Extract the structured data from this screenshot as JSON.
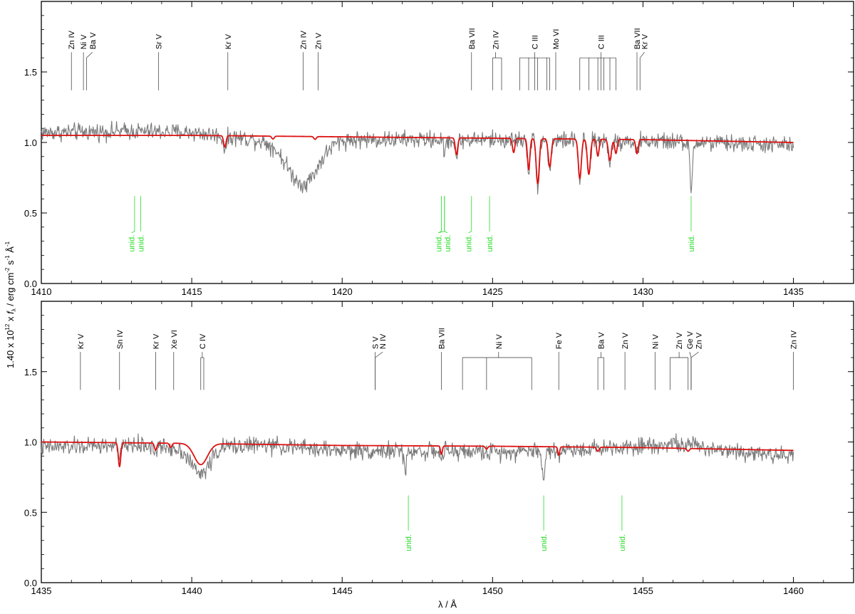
{
  "ylabel_parts": {
    "prefix": "1.40 x 10",
    "exp1": "12",
    "mid": " x ",
    "f": "f",
    "lambda_sub": "λ",
    "unit": " / erg cm",
    "exp2": "-2",
    "s": " s",
    "exp3": "-1",
    "A": " Å",
    "exp4": "-1"
  },
  "xlabel": "λ / Å",
  "colors": {
    "observation": "#7a7a7a",
    "model": "#dd1111",
    "unid": "#22dd22",
    "ion": "#333333",
    "axis": "#000000"
  },
  "chart_data": [
    {
      "type": "line",
      "title": "",
      "xlim": [
        1410,
        1437
      ],
      "ylim": [
        0,
        2
      ],
      "xticks": [
        1410,
        1415,
        1420,
        1425,
        1430,
        1435
      ],
      "yticks": [
        0.0,
        0.5,
        1.0,
        1.5
      ],
      "ytick_labels": [
        "0.0",
        "0.5",
        "1.0",
        "1.5"
      ],
      "series": [
        {
          "role": "observation",
          "x_range": [
            1410,
            1435
          ],
          "continuum": [
            [
              1410,
              1.07
            ],
            [
              1413,
              1.08
            ],
            [
              1415,
              1.07
            ],
            [
              1418,
              1.0
            ],
            [
              1420,
              1.02
            ],
            [
              1425,
              1.02
            ],
            [
              1430,
              1.01
            ],
            [
              1435,
              0.98
            ]
          ],
          "absorptions": [
            [
              1418.7,
              0.3,
              0.5
            ],
            [
              1416.1,
              0.08,
              0.06
            ],
            [
              1423.8,
              0.12,
              0.05
            ],
            [
              1426.2,
              0.22,
              0.04
            ],
            [
              1426.5,
              0.32,
              0.05
            ],
            [
              1426.9,
              0.2,
              0.05
            ],
            [
              1427.9,
              0.28,
              0.05
            ],
            [
              1428.2,
              0.25,
              0.05
            ],
            [
              1428.9,
              0.15,
              0.05
            ],
            [
              1429.8,
              0.1,
              0.04
            ],
            [
              1431.6,
              0.38,
              0.04
            ],
            [
              1423.4,
              0.1,
              0.04
            ]
          ]
        },
        {
          "role": "model",
          "x_range": [
            1410,
            1435
          ],
          "continuum": [
            [
              1410,
              1.05
            ],
            [
              1415,
              1.05
            ],
            [
              1420,
              1.04
            ],
            [
              1425,
              1.03
            ],
            [
              1430,
              1.02
            ],
            [
              1435,
              1.0
            ]
          ],
          "absorptions": [
            [
              1416.1,
              0.08,
              0.04
            ],
            [
              1417.7,
              0.02,
              0.04
            ],
            [
              1419.1,
              0.02,
              0.04
            ],
            [
              1423.8,
              0.12,
              0.04
            ],
            [
              1425.7,
              0.1,
              0.04
            ],
            [
              1426.2,
              0.22,
              0.04
            ],
            [
              1426.5,
              0.32,
              0.05
            ],
            [
              1426.9,
              0.2,
              0.05
            ],
            [
              1427.9,
              0.28,
              0.05
            ],
            [
              1428.2,
              0.25,
              0.05
            ],
            [
              1428.5,
              0.12,
              0.04
            ],
            [
              1428.9,
              0.15,
              0.05
            ],
            [
              1429.1,
              0.1,
              0.04
            ],
            [
              1429.8,
              0.1,
              0.04
            ]
          ]
        }
      ],
      "ion_labels": [
        {
          "text": "Zn IV",
          "line_x": [
            1411.0
          ],
          "label_x": 1411.0
        },
        {
          "text": "Ni V",
          "line_x": [
            1411.4
          ],
          "label_x": 1411.4
        },
        {
          "text": "Ba V",
          "line_x": [
            1411.5
          ],
          "label_x": 1411.7
        },
        {
          "text": "Sr V",
          "line_x": [
            1413.9
          ],
          "label_x": 1413.9
        },
        {
          "text": "Kr V",
          "line_x": [
            1416.2
          ],
          "label_x": 1416.2
        },
        {
          "text": "Zn IV",
          "line_x": [
            1418.7
          ],
          "label_x": 1418.7
        },
        {
          "text": "Zn V",
          "line_x": [
            1419.2
          ],
          "label_x": 1419.2
        },
        {
          "text": "Ba VII",
          "line_x": [
            1424.3
          ],
          "label_x": 1424.3
        },
        {
          "text": "Zn IV",
          "line_x": [
            1425.0,
            1425.3
          ],
          "label_x": 1425.1
        },
        {
          "text": "C III",
          "line_x": [
            1425.9,
            1426.2,
            1426.4,
            1426.5,
            1426.8,
            1426.9
          ],
          "label_x": 1426.4
        },
        {
          "text": "Mo VI",
          "line_x": [
            1427.1
          ],
          "label_x": 1427.1
        },
        {
          "text": "C III",
          "line_x": [
            1427.9,
            1428.2,
            1428.5,
            1428.6,
            1428.7,
            1428.9,
            1429.1
          ],
          "label_x": 1428.6
        },
        {
          "text": "Ba VII",
          "line_x": [
            1429.8
          ],
          "label_x": 1429.8
        },
        {
          "text": "Kr V",
          "line_x": [
            1429.9
          ],
          "label_x": 1430.05
        }
      ],
      "unid_labels": [
        {
          "text": "unid.",
          "line_x": [
            1413.1
          ],
          "label_x": 1413.0
        },
        {
          "text": "unid.",
          "line_x": [
            1413.3
          ],
          "label_x": 1413.3
        },
        {
          "text": "unid.",
          "line_x": [
            1423.3,
            1423.4
          ],
          "label_x": 1423.2
        },
        {
          "text": "unid.",
          "line_x": [
            1423.4
          ],
          "label_x": 1423.5
        },
        {
          "text": "unid.",
          "line_x": [
            1424.3
          ],
          "label_x": 1424.2
        },
        {
          "text": "unid.",
          "line_x": [
            1424.9
          ],
          "label_x": 1424.9
        },
        {
          "text": "unid.",
          "line_x": [
            1431.6
          ],
          "label_x": 1431.6
        }
      ]
    },
    {
      "type": "line",
      "title": "",
      "xlim": [
        1435,
        1462
      ],
      "ylim": [
        0,
        2
      ],
      "xticks": [
        1435,
        1440,
        1445,
        1450,
        1455,
        1460
      ],
      "yticks": [
        0.0,
        0.5,
        1.0,
        1.5
      ],
      "ytick_labels": [
        "0.0",
        "0.5",
        "1.0",
        "1.5"
      ],
      "series": [
        {
          "role": "observation",
          "x_range": [
            1435,
            1460
          ],
          "continuum": [
            [
              1435,
              0.96
            ],
            [
              1438,
              0.98
            ],
            [
              1440,
              0.95
            ],
            [
              1442,
              0.98
            ],
            [
              1445,
              0.94
            ],
            [
              1450,
              0.93
            ],
            [
              1453,
              0.95
            ],
            [
              1456,
              0.99
            ],
            [
              1458,
              0.94
            ],
            [
              1460,
              0.9
            ]
          ],
          "absorptions": [
            [
              1440.3,
              0.18,
              0.3
            ],
            [
              1437.6,
              0.1,
              0.05
            ],
            [
              1438.8,
              0.05,
              0.04
            ],
            [
              1447.1,
              0.12,
              0.05
            ],
            [
              1448.3,
              0.06,
              0.04
            ],
            [
              1451.7,
              0.2,
              0.05
            ],
            [
              1452.2,
              0.06,
              0.04
            ]
          ]
        },
        {
          "role": "model",
          "x_range": [
            1435,
            1460
          ],
          "continuum": [
            [
              1435,
              1.0
            ],
            [
              1440,
              0.99
            ],
            [
              1445,
              0.975
            ],
            [
              1450,
              0.97
            ],
            [
              1455,
              0.96
            ],
            [
              1460,
              0.94
            ]
          ],
          "absorptions": [
            [
              1437.6,
              0.17,
              0.04
            ],
            [
              1438.8,
              0.05,
              0.04
            ],
            [
              1439.3,
              0.03,
              0.04
            ],
            [
              1440.3,
              0.15,
              0.22
            ],
            [
              1448.3,
              0.06,
              0.03
            ],
            [
              1449.8,
              0.02,
              0.04
            ],
            [
              1452.2,
              0.06,
              0.03
            ],
            [
              1453.5,
              0.03,
              0.04
            ],
            [
              1456.5,
              0.02,
              0.04
            ]
          ]
        }
      ],
      "ion_labels": [
        {
          "text": "Kr V",
          "line_x": [
            1436.3
          ],
          "label_x": 1436.3
        },
        {
          "text": "Sn IV",
          "line_x": [
            1437.6
          ],
          "label_x": 1437.6
        },
        {
          "text": "Kr V",
          "line_x": [
            1438.8
          ],
          "label_x": 1438.8
        },
        {
          "text": "Xe VI",
          "line_x": [
            1439.4
          ],
          "label_x": 1439.4
        },
        {
          "text": "C IV",
          "line_x": [
            1440.3,
            1440.4
          ],
          "label_x": 1440.35
        },
        {
          "text": "S V",
          "line_x": [
            1446.1
          ],
          "label_x": 1446.1
        },
        {
          "text": "N IV",
          "line_x": [
            1446.1
          ],
          "label_x": 1446.35
        },
        {
          "text": "Ba VII",
          "line_x": [
            1448.3
          ],
          "label_x": 1448.3
        },
        {
          "text": "Ni V",
          "line_x": [
            1449.0,
            1449.8,
            1451.3
          ],
          "label_x": 1450.2
        },
        {
          "text": "Fe V",
          "line_x": [
            1452.2
          ],
          "label_x": 1452.2
        },
        {
          "text": "Ba V",
          "line_x": [
            1453.5,
            1453.7
          ],
          "label_x": 1453.6
        },
        {
          "text": "Zn V",
          "line_x": [
            1454.4
          ],
          "label_x": 1454.4
        },
        {
          "text": "Ni V",
          "line_x": [
            1455.4
          ],
          "label_x": 1455.4
        },
        {
          "text": "Zn V",
          "line_x": [
            1455.9,
            1456.5
          ],
          "label_x": 1456.2
        },
        {
          "text": "Ge V",
          "line_x": [
            1456.6
          ],
          "label_x": 1456.55
        },
        {
          "text": "Zn V",
          "line_x": [
            1456.6
          ],
          "label_x": 1456.85
        },
        {
          "text": "Zn IV",
          "line_x": [
            1460.0
          ],
          "label_x": 1460.0
        }
      ],
      "unid_labels": [
        {
          "text": "unid.",
          "line_x": [
            1447.2
          ],
          "label_x": 1447.2
        },
        {
          "text": "unid.",
          "line_x": [
            1451.7
          ],
          "label_x": 1451.7
        },
        {
          "text": "unid.",
          "line_x": [
            1454.3
          ],
          "label_x": 1454.3
        }
      ]
    }
  ]
}
